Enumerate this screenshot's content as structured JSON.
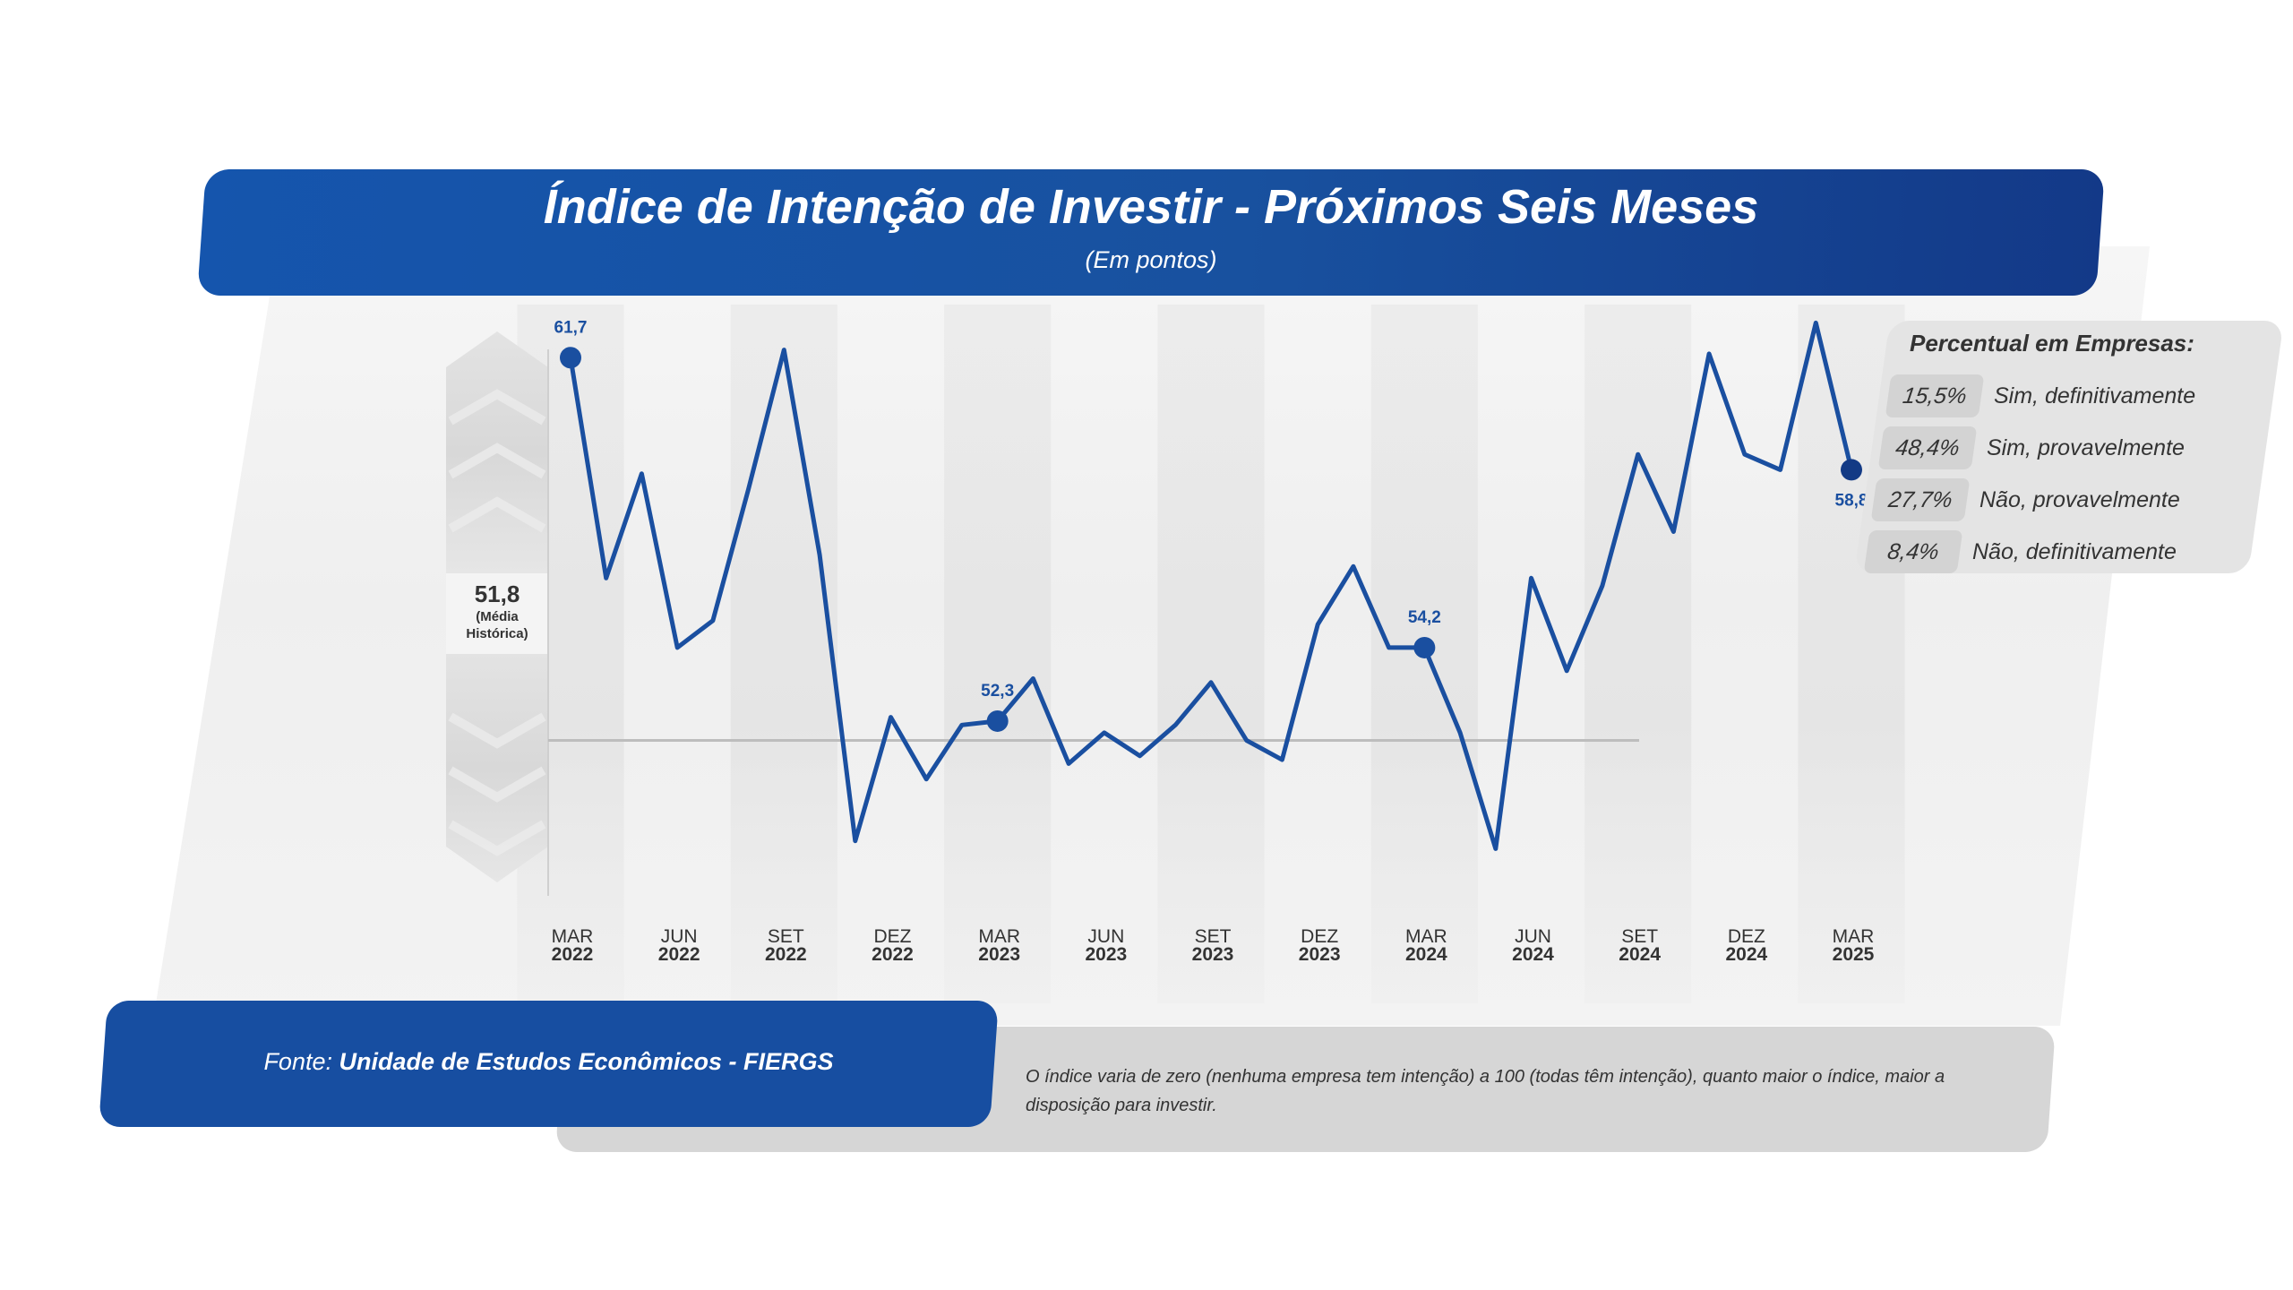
{
  "title": "Índice de Intenção de Investir - Próximos Seis Meses",
  "subtitle": "(Em pontos)",
  "chart_data": {
    "type": "line",
    "title": "Índice de Intenção de Investir - Próximos Seis Meses",
    "subtitle": "(Em pontos)",
    "x": [
      "MAR 2022",
      "ABR 2022",
      "MAI 2022",
      "JUN 2022",
      "JUL 2022",
      "AGO 2022",
      "SET 2022",
      "OUT 2022",
      "NOV 2022",
      "DEZ 2022",
      "JAN 2023",
      "FEV 2023",
      "MAR 2023",
      "ABR 2023",
      "MAI 2023",
      "JUN 2023",
      "JUL 2023",
      "AGO 2023",
      "SET 2023",
      "OUT 2023",
      "NOV 2023",
      "DEZ 2023",
      "JAN 2024",
      "FEV 2024",
      "MAR 2024",
      "ABR 2024",
      "MAI 2024",
      "JUN 2024",
      "JUL 2024",
      "AGO 2024",
      "SET 2024",
      "OUT 2024",
      "NOV 2024",
      "DEZ 2024",
      "JAN 2025",
      "FEV 2025",
      "MAR 2025"
    ],
    "series": [
      {
        "values": [
          61.7,
          56.0,
          58.7,
          54.2,
          54.9,
          58.3,
          61.9,
          56.6,
          49.2,
          52.4,
          50.8,
          52.2,
          52.3,
          53.4,
          51.2,
          52.0,
          51.4,
          52.2,
          53.3,
          51.8,
          51.3,
          54.8,
          56.3,
          54.2,
          54.2,
          52.0,
          49.0,
          56.0,
          53.6,
          55.8,
          59.2,
          57.2,
          61.8,
          59.2,
          58.8,
          62.6,
          58.8
        ]
      }
    ],
    "highlighted_points": [
      {
        "x": "MAR 2022",
        "label": "61,7"
      },
      {
        "x": "MAR 2023",
        "label": "52,3"
      },
      {
        "x": "MAR 2024",
        "label": "54,2"
      },
      {
        "x": "MAR 2025",
        "label": "58,8"
      }
    ],
    "x_tick_labels": [
      {
        "month": "MAR",
        "year": "2022"
      },
      {
        "month": "JUN",
        "year": "2022"
      },
      {
        "month": "SET",
        "year": "2022"
      },
      {
        "month": "DEZ",
        "year": "2022"
      },
      {
        "month": "MAR",
        "year": "2023"
      },
      {
        "month": "JUN",
        "year": "2023"
      },
      {
        "month": "SET",
        "year": "2023"
      },
      {
        "month": "DEZ",
        "year": "2023"
      },
      {
        "month": "MAR",
        "year": "2024"
      },
      {
        "month": "JUN",
        "year": "2024"
      },
      {
        "month": "SET",
        "year": "2024"
      },
      {
        "month": "DEZ",
        "year": "2024"
      },
      {
        "month": "MAR",
        "year": "2025"
      }
    ],
    "reference_line": {
      "value": 51.8,
      "label": "51,8",
      "note_line1": "(Média",
      "note_line2": "Histórica)"
    },
    "ylim": [
      45,
      64
    ],
    "grid": false,
    "colors": {
      "line": "#1a4fa0",
      "marker": "#1a4fa0",
      "marker_last": "#133a85",
      "reference": "#bdbdbd"
    }
  },
  "legend": {
    "title": "Percentual em Empresas:",
    "items": [
      {
        "pct": "15,5%",
        "label": "Sim, definitivamente"
      },
      {
        "pct": "48,4%",
        "label": "Sim, provavelmente"
      },
      {
        "pct": "27,7%",
        "label": "Não, provavelmente"
      },
      {
        "pct": "8,4%",
        "label": "Não, definitivamente"
      }
    ]
  },
  "source": {
    "prefix": "Fonte: ",
    "name": "Unidade de Estudos Econômicos - FIERGS"
  },
  "note": " O índice varia de zero (nenhuma empresa tem intenção) a 100 (todas têm intenção), quanto maior o índice, maior a disposição para investir.",
  "colors": {
    "brand_blue": "#1555ad",
    "brand_dark": "#133988",
    "panel_gray": "#efefef",
    "note_gray": "#d6d6d6"
  }
}
